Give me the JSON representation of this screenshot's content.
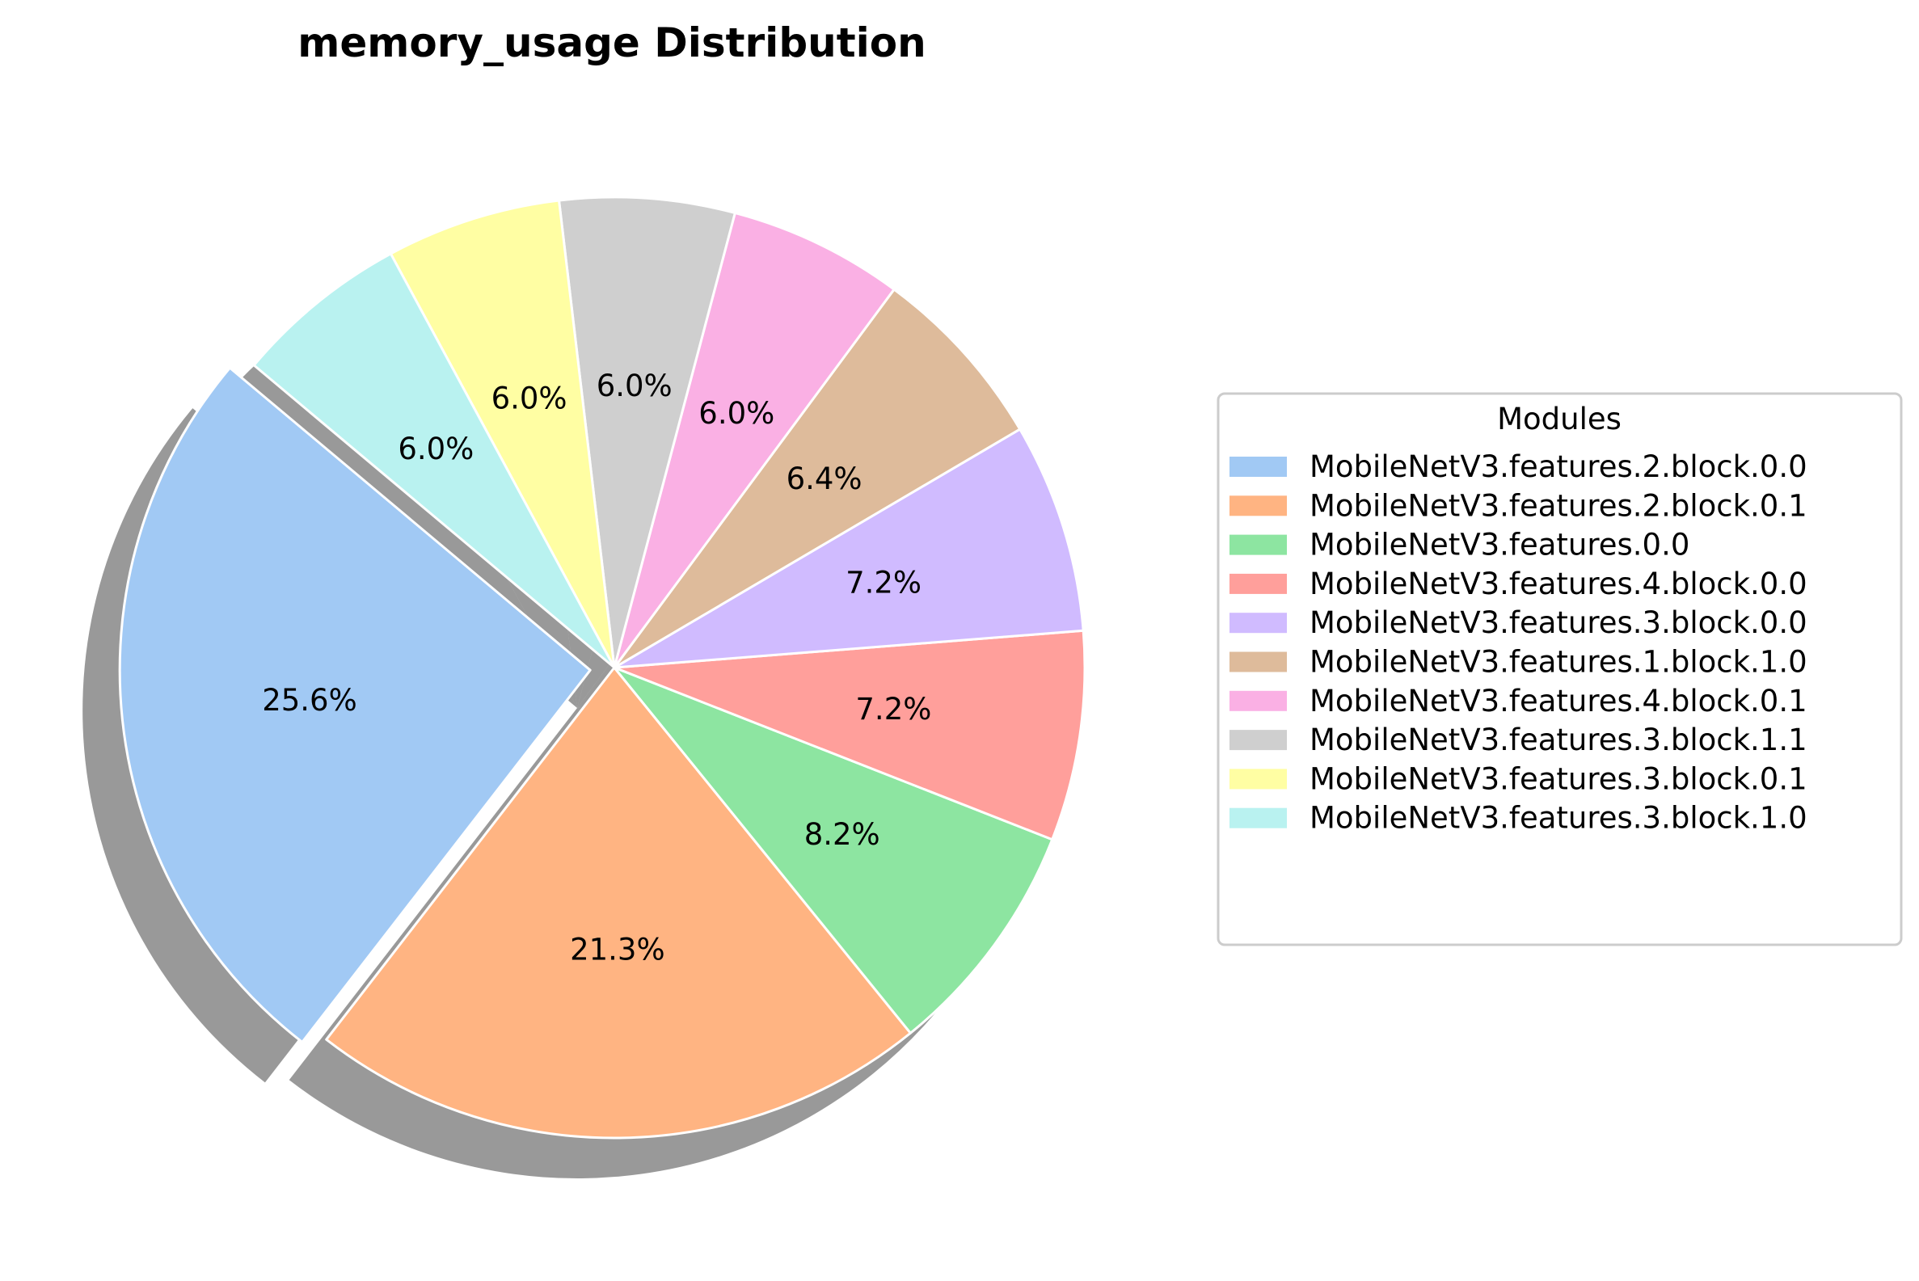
{
  "chart_data": {
    "type": "pie",
    "title": "memory_usage Distribution",
    "legend_title": "Modules",
    "legend_placement": "center-right",
    "start_angle_deg": 140,
    "direction": "counterclockwise",
    "exploded_slice": 0,
    "shadow": true,
    "slices": [
      {
        "label": "MobileNetV3.features.2.block.0.0",
        "value": 25.6,
        "pct_label": "25.6%",
        "color": "#a1c9f4"
      },
      {
        "label": "MobileNetV3.features.2.block.0.1",
        "value": 21.3,
        "pct_label": "21.3%",
        "color": "#ffb482"
      },
      {
        "label": "MobileNetV3.features.0.0",
        "value": 8.2,
        "pct_label": "8.2%",
        "color": "#8de5a1"
      },
      {
        "label": "MobileNetV3.features.4.block.0.0",
        "value": 7.2,
        "pct_label": "7.2%",
        "color": "#ff9f9b"
      },
      {
        "label": "MobileNetV3.features.3.block.0.0",
        "value": 7.2,
        "pct_label": "7.2%",
        "color": "#d0bbff"
      },
      {
        "label": "MobileNetV3.features.1.block.1.0",
        "value": 6.4,
        "pct_label": "6.4%",
        "color": "#debb9b"
      },
      {
        "label": "MobileNetV3.features.4.block.0.1",
        "value": 6.0,
        "pct_label": "6.0%",
        "color": "#fab0e4"
      },
      {
        "label": "MobileNetV3.features.3.block.1.1",
        "value": 6.0,
        "pct_label": "6.0%",
        "color": "#cfcfcf"
      },
      {
        "label": "MobileNetV3.features.3.block.0.1",
        "value": 6.0,
        "pct_label": "6.0%",
        "color": "#fffea3"
      },
      {
        "label": "MobileNetV3.features.3.block.1.0",
        "value": 6.0,
        "pct_label": "6.0%",
        "color": "#b9f2f0"
      }
    ]
  }
}
